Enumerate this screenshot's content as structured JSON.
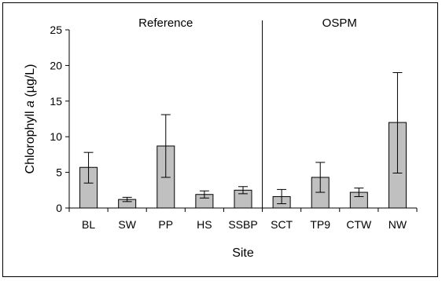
{
  "chart_data": {
    "type": "bar",
    "xlabel": "Site",
    "ylabel": {
      "prefix": "Chlorophyll ",
      "italic": "a",
      "suffix": " (µg/L)"
    },
    "ylim": [
      0,
      25
    ],
    "yticks": [
      "0",
      "5",
      "10",
      "15",
      "20",
      "25"
    ],
    "grid": false,
    "categories": [
      "BL",
      "SW",
      "PP",
      "HS",
      "SSBP",
      "SCT",
      "TP9",
      "CTW",
      "NW"
    ],
    "values": [
      5.7,
      1.2,
      8.7,
      1.9,
      2.5,
      1.6,
      4.3,
      2.2,
      12.0
    ],
    "error_low": [
      3.5,
      0.9,
      4.3,
      1.4,
      2.0,
      0.6,
      2.2,
      1.6,
      4.9
    ],
    "error_high": [
      7.8,
      1.5,
      13.1,
      2.4,
      3.0,
      2.6,
      6.4,
      2.8,
      19.0
    ],
    "groups": [
      {
        "label": "Reference",
        "count": 5
      },
      {
        "label": "OSPM",
        "count": 4
      }
    ],
    "bar_color": "#c0c0c0"
  }
}
